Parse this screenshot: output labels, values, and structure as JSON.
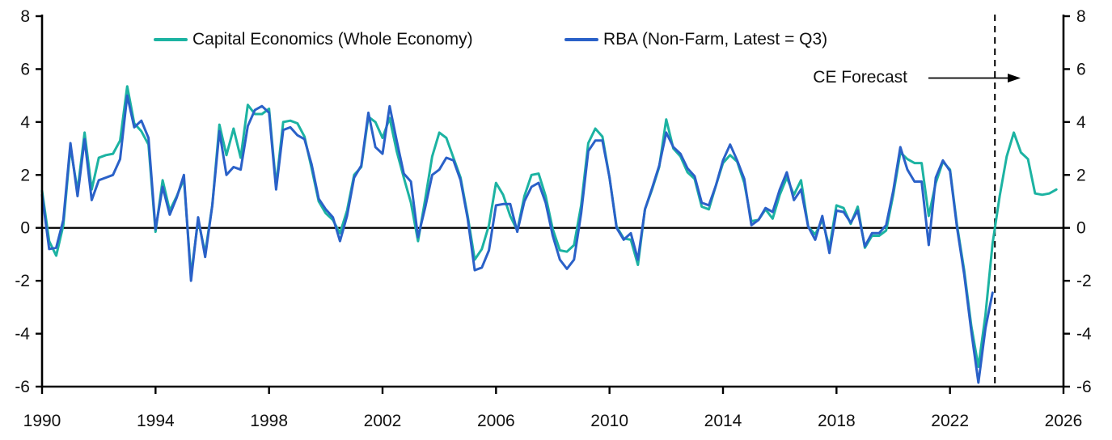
{
  "chart_data": {
    "type": "line",
    "title": "",
    "xlabel": "",
    "ylabel": "",
    "grid": false,
    "legend_position": "top",
    "x_range": [
      1990,
      2026
    ],
    "y_range": [
      -6,
      8
    ],
    "x_ticks": [
      1990,
      1994,
      1998,
      2002,
      2006,
      2010,
      2014,
      2018,
      2022,
      2026
    ],
    "y_ticks": [
      -6,
      -4,
      -2,
      0,
      2,
      4,
      6,
      8
    ],
    "frequency": "quarterly",
    "x_start": 1990.0,
    "x_step": 0.25,
    "series": [
      {
        "name": "Capital Economics (Whole Economy)",
        "color": "#1cb3a2",
        "values": [
          1.4,
          -0.5,
          -1.05,
          0.1,
          3.05,
          1.4,
          3.6,
          1.45,
          2.65,
          2.75,
          2.8,
          3.3,
          5.35,
          3.95,
          3.65,
          3.15,
          -0.15,
          1.8,
          0.65,
          1.2,
          1.85,
          -1.8,
          0.3,
          -0.95,
          0.85,
          3.9,
          2.75,
          3.75,
          2.65,
          4.65,
          4.3,
          4.3,
          4.5,
          1.6,
          4.0,
          4.05,
          3.95,
          3.45,
          2.25,
          1.0,
          0.55,
          0.3,
          -0.2,
          0.65,
          2.0,
          2.3,
          4.2,
          4.0,
          3.4,
          4.15,
          2.9,
          1.9,
          0.95,
          -0.5,
          1.05,
          2.7,
          3.6,
          3.4,
          2.65,
          1.9,
          0.45,
          -1.2,
          -0.8,
          0.1,
          1.7,
          1.25,
          0.45,
          -0.1,
          1.2,
          2.0,
          2.05,
          1.2,
          -0.05,
          -0.85,
          -0.9,
          -0.65,
          0.85,
          3.2,
          3.75,
          3.45,
          1.9,
          0.05,
          -0.4,
          -0.45,
          -1.4,
          0.7,
          1.45,
          2.3,
          4.1,
          3.0,
          2.7,
          2.1,
          1.85,
          0.8,
          0.7,
          1.6,
          2.45,
          2.75,
          2.5,
          1.7,
          0.25,
          0.3,
          0.7,
          0.35,
          1.25,
          1.9,
          1.25,
          1.8,
          0.05,
          -0.25,
          0.3,
          -0.75,
          0.85,
          0.75,
          0.15,
          0.8,
          -0.75,
          -0.3,
          -0.3,
          -0.1,
          1.25,
          2.85,
          2.6,
          2.45,
          2.45,
          0.45,
          1.7,
          2.5,
          2.2,
          0.1,
          -1.6,
          -3.7,
          -5.25,
          -3.3,
          -0.6,
          1.2,
          2.7,
          3.6,
          2.85,
          2.6,
          1.3,
          1.25,
          1.3,
          1.45
        ]
      },
      {
        "name": "RBA (Non-Farm, Latest = Q3)",
        "color": "#2a61c8",
        "values": [
          1.25,
          -0.8,
          -0.75,
          0.3,
          3.2,
          1.2,
          3.35,
          1.05,
          1.8,
          1.9,
          2.0,
          2.6,
          5.0,
          3.8,
          4.05,
          3.4,
          -0.05,
          1.55,
          0.5,
          1.15,
          2.0,
          -2.0,
          0.4,
          -1.1,
          0.85,
          3.65,
          2.0,
          2.3,
          2.2,
          3.85,
          4.45,
          4.6,
          4.35,
          1.45,
          3.7,
          3.8,
          3.5,
          3.35,
          2.4,
          1.1,
          0.7,
          0.4,
          -0.5,
          0.45,
          1.9,
          2.35,
          4.35,
          3.05,
          2.8,
          4.6,
          3.3,
          2.05,
          1.75,
          -0.35,
          0.75,
          2.0,
          2.2,
          2.65,
          2.55,
          1.8,
          0.35,
          -1.6,
          -1.5,
          -0.85,
          0.85,
          0.9,
          0.9,
          -0.15,
          1.0,
          1.55,
          1.7,
          0.95,
          -0.3,
          -1.2,
          -1.55,
          -1.2,
          0.55,
          2.9,
          3.3,
          3.3,
          1.9,
          0.0,
          -0.45,
          -0.2,
          -1.2,
          0.7,
          1.5,
          2.35,
          3.6,
          3.05,
          2.8,
          2.25,
          1.95,
          0.95,
          0.85,
          1.6,
          2.55,
          3.15,
          2.55,
          1.85,
          0.1,
          0.3,
          0.75,
          0.6,
          1.45,
          2.1,
          1.05,
          1.45,
          0.05,
          -0.45,
          0.45,
          -0.95,
          0.65,
          0.6,
          0.2,
          0.65,
          -0.7,
          -0.2,
          -0.2,
          0.1,
          1.4,
          3.05,
          2.2,
          1.75,
          1.75,
          -0.65,
          1.9,
          2.55,
          2.15,
          0.0,
          -1.75,
          -3.9,
          -5.85,
          -3.8,
          -2.45
        ]
      }
    ],
    "annotations": {
      "forecast_label": "CE Forecast",
      "forecast_divider_x": 2023.583,
      "zero_line_y": 0
    }
  },
  "legend": {
    "items": [
      {
        "label": "Capital Economics (Whole Economy)",
        "color": "#1cb3a2"
      },
      {
        "label": "RBA (Non-Farm, Latest = Q3)",
        "color": "#2a61c8"
      }
    ]
  },
  "colors": {
    "axis": "#000000",
    "text": "#111111",
    "background": "#ffffff",
    "teal_series": "#1cb3a2",
    "blue_series": "#2a61c8"
  }
}
